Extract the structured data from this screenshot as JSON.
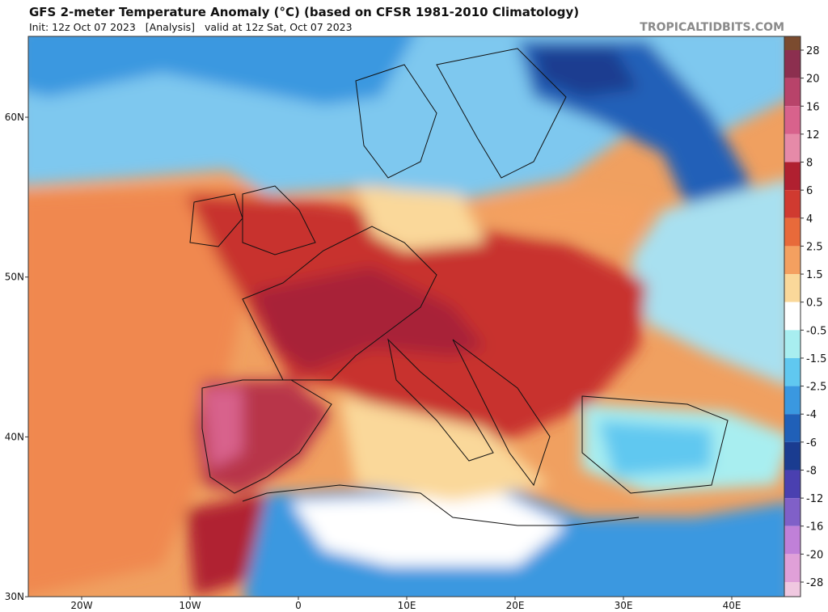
{
  "header": {
    "title": "GFS 2-meter Temperature Anomaly (°C) (based on CFSR 1981-2010 Climatology)",
    "subtitle": "Init: 12z Oct 07 2023   [Analysis]   valid at 12z Sat, Oct 07 2023",
    "watermark": "TROPICALTIDBITS.COM"
  },
  "map": {
    "lat_labels": [
      "60N",
      "50N",
      "40N",
      "30N"
    ],
    "lon_labels": [
      "20W",
      "10W",
      "0",
      "10E",
      "20E",
      "30E",
      "40E"
    ]
  },
  "colorbar": {
    "labels": [
      "28",
      "20",
      "16",
      "12",
      "8",
      "6",
      "4",
      "2.5",
      "1.5",
      "0.5",
      "-0.5",
      "-1.5",
      "-2.5",
      "-4",
      "-6",
      "-8",
      "-12",
      "-16",
      "-20",
      "-28"
    ],
    "colors": [
      "#7b4b2f",
      "#8c2f4f",
      "#b8436a",
      "#d8628c",
      "#e68aa8",
      "#b02030",
      "#d03a30",
      "#e86a3a",
      "#f4a060",
      "#fad89a",
      "#ffffff",
      "#a8eef0",
      "#60c8f0",
      "#3a98e0",
      "#2060b8",
      "#1a3c90",
      "#4a40b0",
      "#8060c8",
      "#c080d8",
      "#e0a0d8",
      "#f0c8e0"
    ]
  }
}
